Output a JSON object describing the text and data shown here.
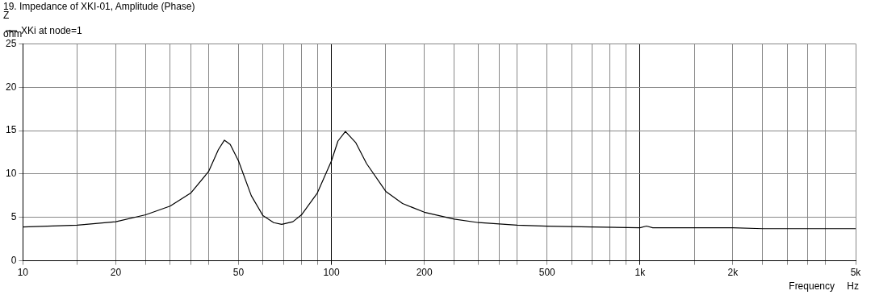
{
  "chart_data": {
    "type": "line",
    "title": "19. Impedance of XKI-01, Amplitude (Phase)",
    "xlabel": "Frequency",
    "ylabel": "ohm",
    "legend_title": "Z",
    "annotations": [
      "Hz"
    ],
    "log": "x",
    "grid": true,
    "legend": "top left",
    "marker": "none",
    "line_style": "solid",
    "xlim": [
      10,
      5000
    ],
    "ylim": [
      0,
      25
    ],
    "yticks": [
      0,
      5,
      10,
      15,
      20,
      25
    ],
    "xticks": [
      10,
      {
        "value": 15,
        "label": null
      },
      20,
      {
        "value": 25,
        "label": null
      },
      {
        "value": 30,
        "label": null
      },
      {
        "value": 35,
        "label": null
      },
      {
        "value": 40,
        "label": null
      },
      50,
      {
        "value": 60,
        "label": null
      },
      {
        "value": 70,
        "label": null
      },
      {
        "value": 80,
        "label": null
      },
      {
        "value": 90,
        "label": null
      },
      100,
      {
        "value": 150,
        "label": null
      },
      200,
      {
        "value": 250,
        "label": null
      },
      {
        "value": 300,
        "label": null
      },
      {
        "value": 350,
        "label": null
      },
      {
        "value": 400,
        "label": null
      },
      500,
      {
        "value": 600,
        "label": null
      },
      {
        "value": 700,
        "label": null
      },
      {
        "value": 800,
        "label": null
      },
      {
        "value": 900,
        "label": null
      },
      {
        "value": 1000,
        "label": "1k"
      },
      {
        "value": 1500,
        "label": null
      },
      {
        "value": 2000,
        "label": "2k"
      },
      {
        "value": 2500,
        "label": null
      },
      {
        "value": 3000,
        "label": null
      },
      {
        "value": 3500,
        "label": null
      },
      {
        "value": 4000,
        "label": null
      },
      {
        "value": 5000,
        "label": "5k"
      }
    ],
    "x": [
      10,
      15,
      20,
      25,
      30,
      35,
      40,
      43,
      45,
      47,
      50,
      55,
      60,
      65,
      69,
      75,
      80,
      90,
      100,
      105,
      111,
      120,
      130,
      150,
      170,
      200,
      250,
      300,
      400,
      500,
      700,
      1000,
      1050,
      1100,
      2000,
      2500,
      5000
    ],
    "series": [
      {
        "name": "XKi at node=1",
        "color": "#000000",
        "values": [
          3.9,
          4.1,
          4.5,
          5.3,
          6.3,
          7.8,
          10.3,
          12.8,
          13.9,
          13.4,
          11.5,
          7.5,
          5.2,
          4.4,
          4.2,
          4.5,
          5.3,
          7.8,
          11.5,
          13.8,
          14.9,
          13.6,
          11.2,
          8.0,
          6.6,
          5.6,
          4.8,
          4.4,
          4.1,
          4.0,
          3.9,
          3.8,
          4.0,
          3.8,
          3.8,
          3.7,
          3.7
        ]
      }
    ]
  }
}
